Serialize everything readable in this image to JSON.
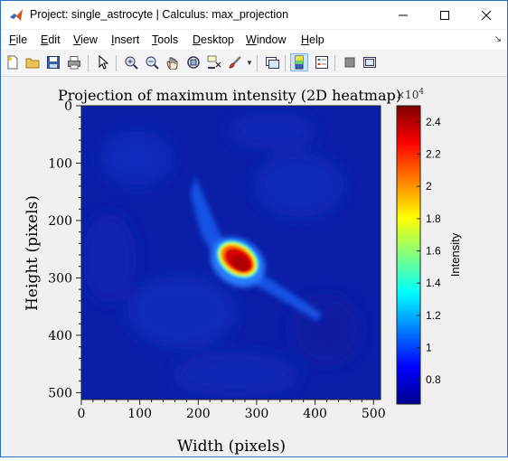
{
  "window": {
    "title": "Project: single_astrocyte | Calculus: max_projection"
  },
  "menu": [
    {
      "key": "F",
      "rest": "ile"
    },
    {
      "key": "E",
      "rest": "dit"
    },
    {
      "key": "V",
      "rest": "iew"
    },
    {
      "key": "I",
      "rest": "nsert"
    },
    {
      "key": "T",
      "rest": "ools"
    },
    {
      "key": "D",
      "rest": "esktop"
    },
    {
      "key": "W",
      "rest": "indow"
    },
    {
      "key": "H",
      "rest": "elp"
    }
  ],
  "toolbar": {
    "icons": [
      "new-figure-icon",
      "open-file-icon",
      "save-icon",
      "print-icon",
      "pointer-icon",
      "zoom-in-icon",
      "zoom-out-icon",
      "pan-icon",
      "rotate-3d-icon",
      "data-cursor-icon",
      "brush-icon",
      "link-plot-icon",
      "colorbar-icon",
      "legend-icon",
      "hide-plot-tools-icon",
      "show-plot-tools-icon"
    ],
    "active": "colorbar-icon"
  },
  "chart_data": {
    "type": "heatmap",
    "title": "Projection of maximum intensity (2D heatmap)",
    "xlabel": "Width (pixels)",
    "ylabel": "Height (pixels)",
    "xlim": [
      0,
      512
    ],
    "ylim": [
      512,
      0
    ],
    "xticks": [
      0,
      100,
      200,
      300,
      400,
      500
    ],
    "yticks": [
      0,
      100,
      200,
      300,
      400,
      500
    ],
    "colormap": "jet",
    "colorbar": {
      "label": "Intensity",
      "exponent_label": "×10",
      "exponent": "4",
      "range": [
        0.65,
        2.5
      ],
      "ticks": [
        0.8,
        1,
        1.2,
        1.4,
        1.6,
        1.8,
        2,
        2.2,
        2.4
      ],
      "tick_labels": [
        "0.8",
        "1",
        "1.2",
        "1.4",
        "1.6",
        "1.8",
        "2",
        "2.2",
        "2.4"
      ]
    },
    "features": [
      {
        "name": "cell-body",
        "x": 265,
        "y": 275,
        "peak": 2.45
      },
      {
        "name": "upper-process",
        "x": [
          210,
          265
        ],
        "y": [
          120,
          270
        ],
        "level": 1.35
      },
      {
        "name": "right-process",
        "x": [
          265,
          360
        ],
        "y": [
          275,
          345
        ],
        "level": 1.1
      }
    ]
  }
}
